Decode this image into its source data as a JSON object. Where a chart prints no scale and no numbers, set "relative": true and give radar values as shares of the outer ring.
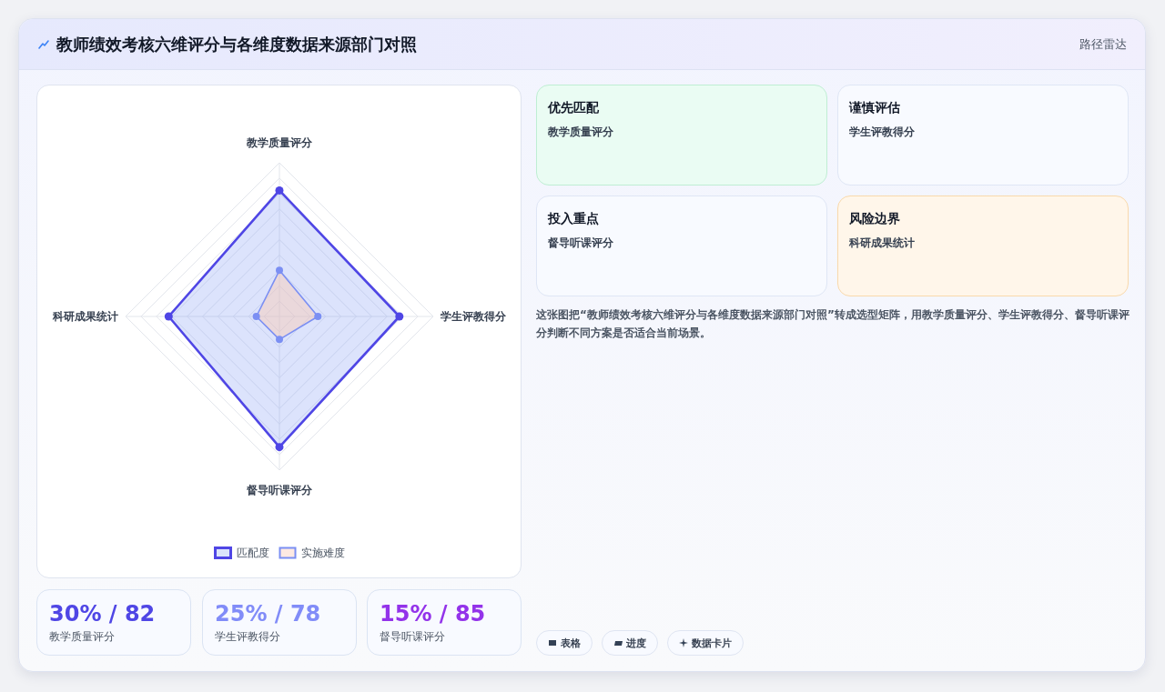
{
  "chart_data": [
    {
      "type": "other",
      "title": "教师绩效考核六维评分与各维度数据来源部门对照",
      "annotations": [
        "路径雷达"
      ]
    },
    {
      "type": "radar",
      "categories": [
        "教学质量评分",
        "学生评教得分",
        "督导听课评分",
        "科研成果统计"
      ],
      "relative": true,
      "series": [
        {
          "name": "匹配度",
          "color": "#4f46e5",
          "values": [
            0.82,
            0.78,
            0.85,
            0.72
          ]
        },
        {
          "name": "实施难度",
          "color": "#7b8ff3",
          "values": [
            0.3,
            0.25,
            0.15,
            0.15
          ]
        }
      ],
      "grid": true,
      "legend": "bottom",
      "marker": "circle"
    },
    {
      "type": "other",
      "annotations": [
        "优先匹配",
        "教学质量评分",
        "谨慎评估",
        "学生评教得分",
        "投入重点",
        "督导听课评分",
        "风险边界",
        "科研成果统计",
        "这张图把“教师绩效考核六维评分与各维度数据来源部门对照”转成选型矩阵，用教学质量评分、学生评教得分、督导听课评分判断不同方案是否适合当前场景。",
        "表格",
        "进度",
        "数据卡片"
      ]
    },
    {
      "type": "other",
      "annotations": [
        "30% / 82",
        "教学质量评分",
        "25% / 78",
        "学生评教得分",
        "15% / 85",
        "督导听课评分"
      ]
    }
  ]
}
